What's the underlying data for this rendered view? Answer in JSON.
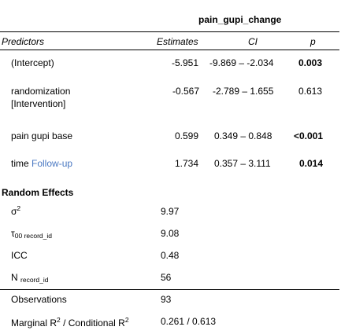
{
  "table": {
    "dependent_variable": "pain_gupi_change",
    "headers": {
      "predictors": "Predictors",
      "estimates": "Estimates",
      "ci": "CI",
      "p": "p"
    },
    "rows": [
      {
        "predictor": "(Intercept)",
        "estimate": "-5.951",
        "ci": "-9.869 – -2.034",
        "p": "0.003",
        "p_bold": true
      },
      {
        "predictor_line1": "randomization",
        "predictor_line2": "[Intervention]",
        "estimate": "-0.567",
        "ci": "-2.789 – 1.655",
        "p": "0.613",
        "p_bold": false
      },
      {
        "predictor": "pain gupi base",
        "estimate": "0.599",
        "ci": "0.349 – 0.848",
        "p": "<0.001",
        "p_bold": true
      },
      {
        "predictor_prefix": "time",
        "predictor_level": "Follow-up",
        "estimate": "1.734",
        "ci": "0.357 – 3.111",
        "p": "0.014",
        "p_bold": true
      }
    ],
    "random_effects": {
      "title": "Random Effects",
      "sigma2": {
        "symbol": "σ",
        "sup": "2",
        "value": "9.97"
      },
      "tau00": {
        "symbol": "τ",
        "sub": "00 record_id",
        "value": "9.08"
      },
      "icc": {
        "label": "ICC",
        "value": "0.48"
      },
      "n": {
        "symbol": "N",
        "sub": "record_id",
        "value": "56"
      }
    },
    "observations": {
      "label": "Observations",
      "value": "93"
    },
    "r2": {
      "label_a": "Marginal R",
      "sup_a": "2",
      "label_b": " / Conditional R",
      "sup_b": "2",
      "value": "0.261 / 0.613"
    }
  },
  "colors": {
    "accent_link": "#4a78c2",
    "rule": "#000000"
  }
}
